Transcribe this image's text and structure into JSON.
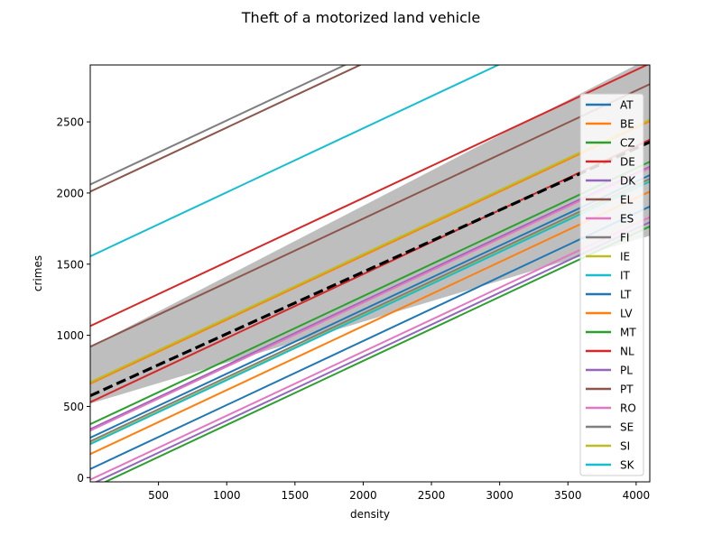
{
  "chart_data": {
    "type": "line",
    "title": "Theft of a motorized land vehicle",
    "xlabel": "density",
    "ylabel": "crimes",
    "xlim": [
      0,
      4100
    ],
    "ylim": [
      -30,
      2900
    ],
    "x_ticks": [
      500,
      1000,
      1500,
      2000,
      2500,
      3000,
      3500,
      4000
    ],
    "y_ticks": [
      0,
      500,
      1000,
      1500,
      2000,
      2500
    ],
    "grid": false,
    "legend_position": "right",
    "slope": 0.45,
    "series": [
      {
        "name": "AT",
        "color": "#1f77b4",
        "intercept": 280
      },
      {
        "name": "BE",
        "color": "#ff7f0e",
        "intercept": 660
      },
      {
        "name": "CZ",
        "color": "#2ca02c",
        "intercept": 375
      },
      {
        "name": "DE",
        "color": "#d62728",
        "intercept": 530
      },
      {
        "name": "DK",
        "color": "#9467bd",
        "intercept": 340
      },
      {
        "name": "EL",
        "color": "#8c564b",
        "intercept": 920
      },
      {
        "name": "ES",
        "color": "#e377c2",
        "intercept": 330
      },
      {
        "name": "FI",
        "color": "#7f7f7f",
        "intercept": 255
      },
      {
        "name": "IE",
        "color": "#bcbd22",
        "intercept": 670
      },
      {
        "name": "IT",
        "color": "#17becf",
        "intercept": 1555
      },
      {
        "name": "LT",
        "color": "#1f77b4",
        "intercept": 60
      },
      {
        "name": "LV",
        "color": "#ff7f0e",
        "intercept": 165
      },
      {
        "name": "MT",
        "color": "#2ca02c",
        "intercept": -80
      },
      {
        "name": "NL",
        "color": "#d62728",
        "intercept": 1065
      },
      {
        "name": "PL",
        "color": "#9467bd",
        "intercept": -50
      },
      {
        "name": "PT",
        "color": "#8c564b",
        "intercept": 2010
      },
      {
        "name": "RO",
        "color": "#e377c2",
        "intercept": -15
      },
      {
        "name": "SE",
        "color": "#7f7f7f",
        "intercept": 2060
      },
      {
        "name": "SI",
        "color": "#bcbd22",
        "intercept": 240
      },
      {
        "name": "SK",
        "color": "#17becf",
        "intercept": 235
      }
    ],
    "mean_line": {
      "intercept": 575,
      "slope": 0.435,
      "color": "#000000"
    },
    "band": {
      "color": "#bebebe",
      "lower_at_x0": 520,
      "lower_at_x1": 1700,
      "upper_at_x0": 920,
      "upper_at_x1": 2950
    }
  }
}
